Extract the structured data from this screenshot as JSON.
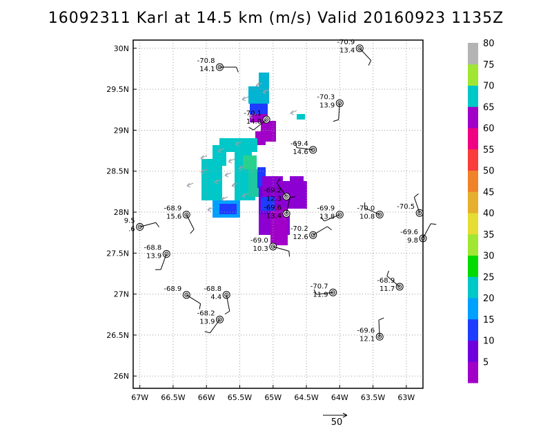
{
  "title": "16092311 Karl at 14.5 km (m/s) Valid 20160923 1135Z",
  "map": {
    "lon_range": [
      -67.1,
      -62.75
    ],
    "lat_range": [
      25.85,
      30.1
    ],
    "lon_ticks": [
      -67,
      -66.5,
      -66,
      -65.5,
      -65,
      -64.5,
      -64,
      -63.5,
      -63
    ],
    "lon_tick_labels": [
      "67W",
      "66.5W",
      "66W",
      "65.5W",
      "65W",
      "64.5W",
      "64W",
      "63.5W",
      "63W"
    ],
    "lat_ticks": [
      26,
      26.5,
      27,
      27.5,
      28,
      28.5,
      29,
      29.5,
      30
    ],
    "lat_tick_labels": [
      "26N",
      "26.5N",
      "27N",
      "27.5N",
      "28N",
      "28.5N",
      "29N",
      "29.5N",
      "30N"
    ],
    "grid": "dotted"
  },
  "colorbar": {
    "labels": [
      "5",
      "10",
      "15",
      "20",
      "25",
      "30",
      "35",
      "40",
      "45",
      "50",
      "55",
      "60",
      "65",
      "70",
      "75",
      "80"
    ],
    "colors": [
      "#a000c8",
      "#6e00dc",
      "#1e3cff",
      "#00a0ff",
      "#00c8c8",
      "#00dc00",
      "#a0e632",
      "#e6dc32",
      "#e6af2d",
      "#f08228",
      "#fa3c3c",
      "#f00082",
      "#a000c8",
      "#00c8c8",
      "#a0e632",
      "#b4b4b4"
    ]
  },
  "stations": [
    {
      "lon": -65.8,
      "lat": 29.77,
      "val1": "-70.8",
      "val2": "14.1"
    },
    {
      "lon": -63.7,
      "lat": 30.0,
      "val1": "-70.9",
      "val2": "13.4"
    },
    {
      "lon": -64.0,
      "lat": 29.33,
      "val1": "-70.3",
      "val2": "13.9"
    },
    {
      "lon": -65.1,
      "lat": 29.13,
      "val1": "-70.1",
      "val2": "14.0"
    },
    {
      "lon": -64.4,
      "lat": 28.76,
      "val1": "-69.4",
      "val2": "14.6"
    },
    {
      "lon": -64.8,
      "lat": 28.19,
      "val1": "-69.2",
      "val2": "12.3"
    },
    {
      "lon": -64.8,
      "lat": 27.98,
      "val1": "-69.6",
      "val2": "13.4"
    },
    {
      "lon": -64.4,
      "lat": 27.72,
      "val1": "-70.2",
      "val2": "12.6"
    },
    {
      "lon": -65.0,
      "lat": 27.58,
      "val1": "-69.0",
      "val2": "10.3"
    },
    {
      "lon": -66.3,
      "lat": 27.97,
      "val1": "-68.9",
      "val2": "15.6"
    },
    {
      "lon": -66.6,
      "lat": 27.49,
      "val1": "-68.8",
      "val2": "13.9"
    },
    {
      "lon": -64.0,
      "lat": 27.97,
      "val1": "-69.9",
      "val2": "13.8"
    },
    {
      "lon": -63.4,
      "lat": 27.97,
      "val1": "-70.0",
      "val2": "10.8"
    },
    {
      "lon": -62.8,
      "lat": 27.99,
      "val1": "-70.5",
      "val2": ""
    },
    {
      "lon": -62.75,
      "lat": 27.68,
      "val1": "-69.6",
      "val2": "9.8"
    },
    {
      "lon": -67.0,
      "lat": 27.82,
      "val1": "9.5",
      "val2": ".6"
    },
    {
      "lon": -66.3,
      "lat": 26.99,
      "val1": "-68.9",
      "val2": ""
    },
    {
      "lon": -65.7,
      "lat": 26.99,
      "val1": "-68.8",
      "val2": "4.4"
    },
    {
      "lon": -65.8,
      "lat": 26.69,
      "val1": "-68.2",
      "val2": "13.9"
    },
    {
      "lon": -64.1,
      "lat": 27.02,
      "val1": "-70.7",
      "val2": "11.9"
    },
    {
      "lon": -63.1,
      "lat": 27.09,
      "val1": "-68.9",
      "val2": "11.7"
    },
    {
      "lon": -63.4,
      "lat": 26.48,
      "val1": "-69.6",
      "val2": "12.1"
    }
  ],
  "reference_vector_label": "50"
}
